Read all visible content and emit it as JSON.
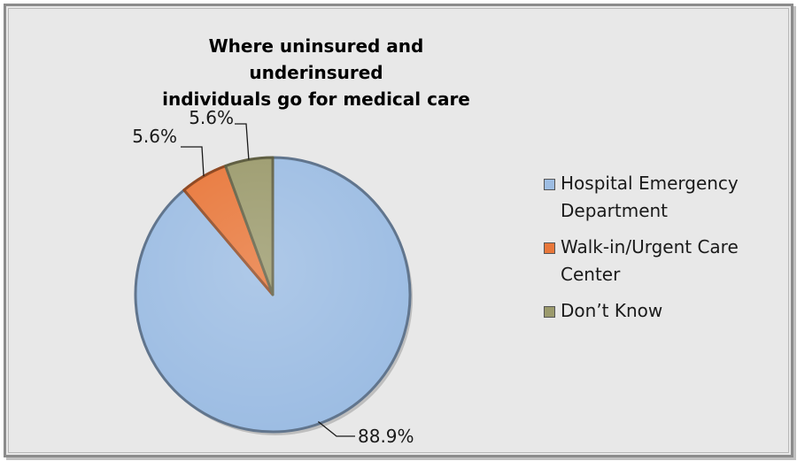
{
  "chart_data": {
    "type": "pie",
    "title": "Where uninsured and underinsured individuals go for medical care",
    "title_lines": [
      "Where uninsured and underinsured",
      "individuals go for medical care"
    ],
    "categories": [
      "Hospital Emergency Department",
      "Walk-in/Urgent Care Center",
      "Don’t Know"
    ],
    "values": [
      88.9,
      5.6,
      5.6
    ],
    "data_labels": [
      "88.9%",
      "5.6%",
      "5.6%"
    ],
    "colors": [
      "#9dbde3",
      "#e8773a",
      "#9b9a6c"
    ],
    "legend_position": "right",
    "legend_lines": [
      [
        "Hospital Emergency",
        "Department"
      ],
      [
        "Walk-in/Urgent Care",
        "Center"
      ],
      [
        "Don’t Know"
      ]
    ]
  }
}
